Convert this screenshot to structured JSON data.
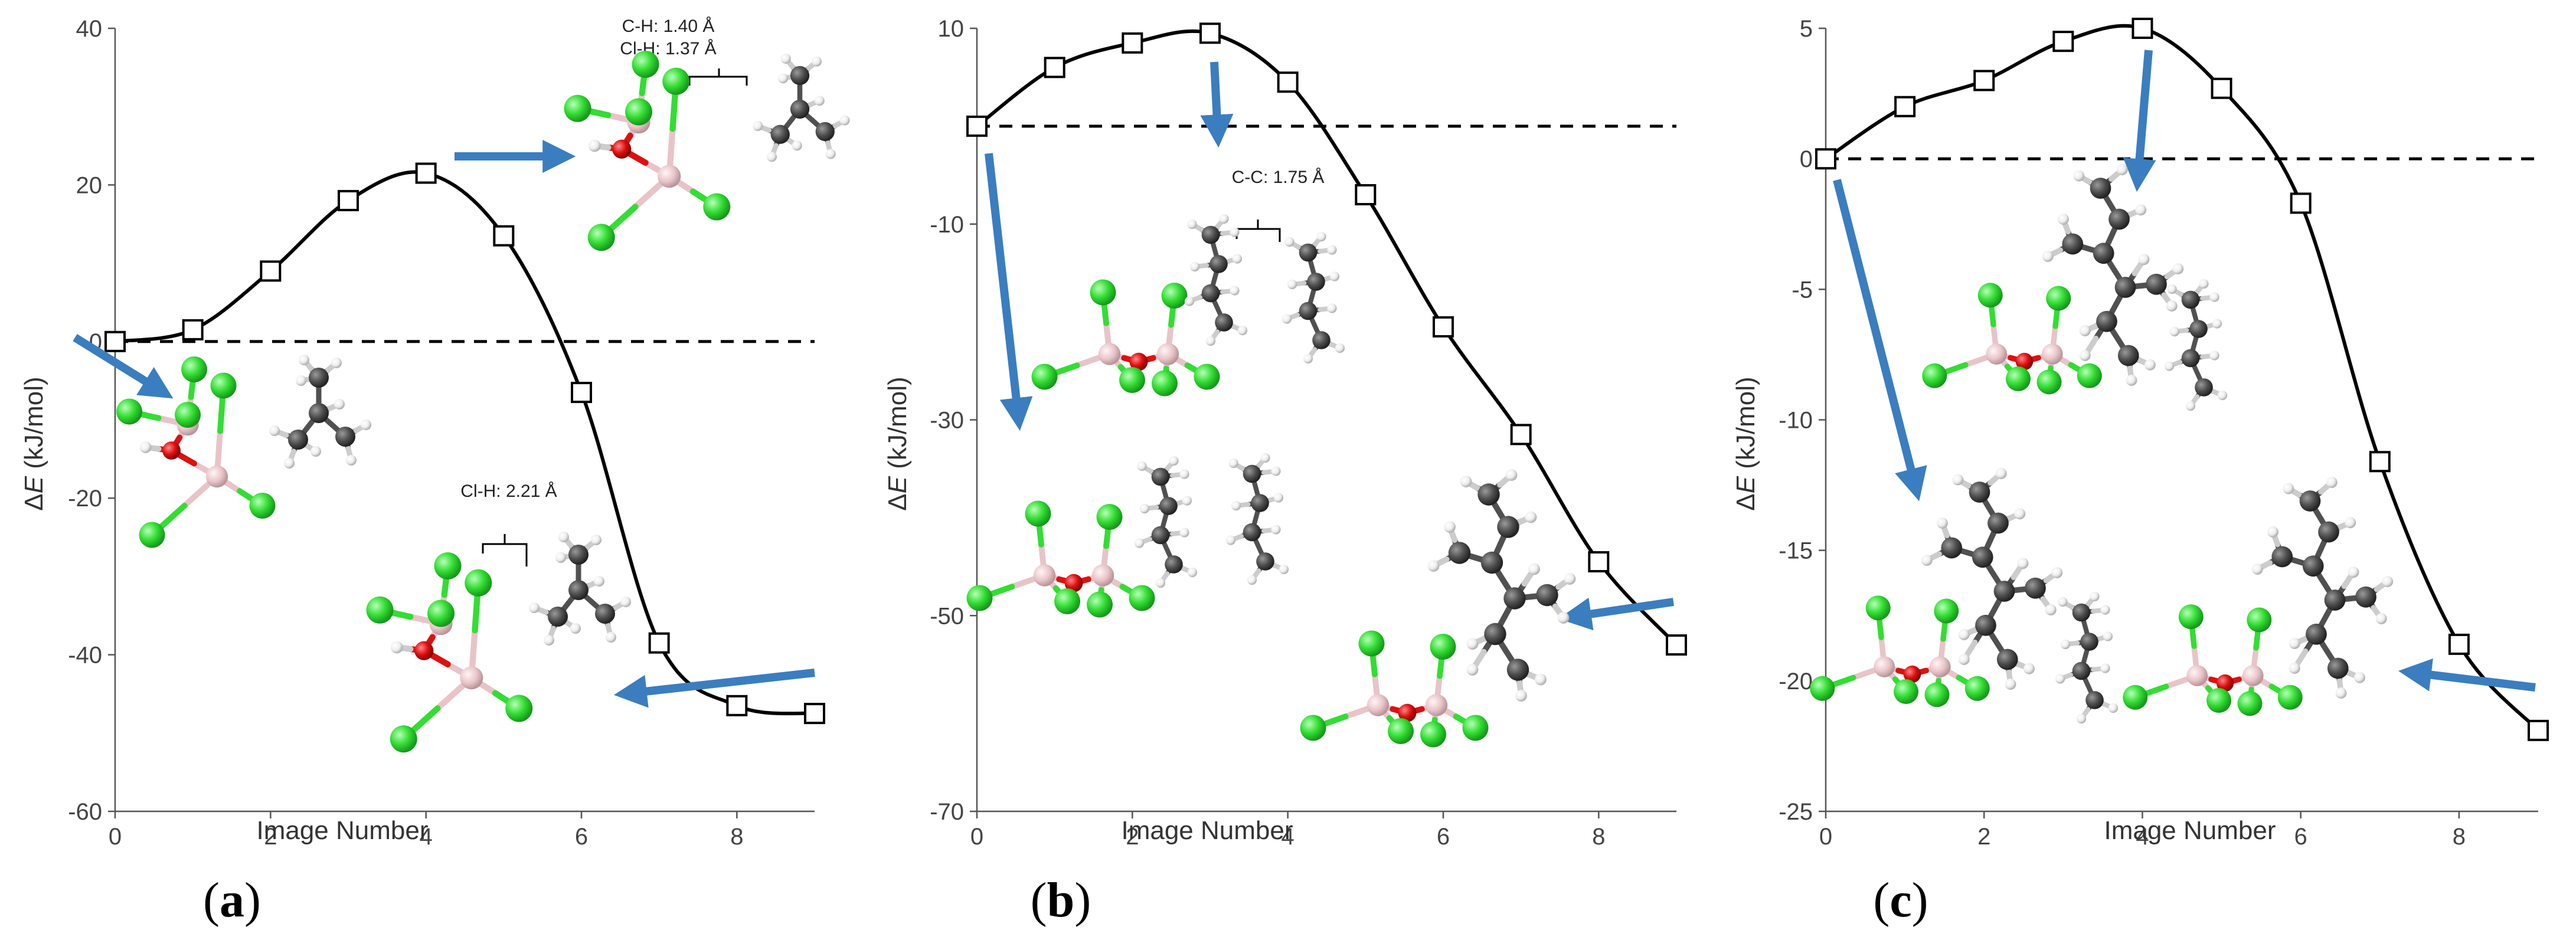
{
  "figure": {
    "panels": [
      {
        "label": "(a)",
        "label_letter": "a",
        "xlabel": "Image Number",
        "ylabel_prefix": "Δ",
        "ylabel_var": "E",
        "ylabel_suffix": " (kJ/mol)",
        "annotations": [
          {
            "text": "C-H: 1.40 Å"
          },
          {
            "text": "Cl-H: 1.37 Å"
          },
          {
            "text": "Cl-H: 2.21 Å"
          }
        ]
      },
      {
        "label": "(b)",
        "label_letter": "b",
        "xlabel": "Image Number",
        "ylabel_prefix": "Δ",
        "ylabel_var": "E",
        "ylabel_suffix": " (kJ/mol)",
        "annotations": [
          {
            "text": "C-C: 1.75 Å"
          }
        ]
      },
      {
        "label": "(c)",
        "label_letter": "c",
        "xlabel": "Image Number",
        "ylabel_prefix": "Δ",
        "ylabel_var": "E",
        "ylabel_suffix": " (kJ/mol)",
        "annotations": []
      }
    ],
    "colors": {
      "curve": "#000000",
      "arrow": "#3a7ec0",
      "chlorine": "#33dd33",
      "boron": "#e8c4c8",
      "oxygen": "#dd1111",
      "carbon": "#505050",
      "hydrogen": "#f2f2f2"
    }
  },
  "chart_data": [
    {
      "type": "line",
      "title": "",
      "xlabel": "Image Number",
      "ylabel": "ΔE (kJ/mol)",
      "x": [
        0,
        1,
        2,
        3,
        4,
        5,
        6,
        7,
        8,
        9
      ],
      "series": [
        {
          "values": [
            0,
            1.5,
            9,
            18,
            21.5,
            13.5,
            -6.5,
            -38.5,
            -46.5,
            -47.5
          ]
        }
      ],
      "xlim": [
        0,
        9
      ],
      "xticks": [
        0,
        2,
        4,
        6,
        8
      ],
      "ylim": [
        -60,
        40
      ],
      "yticks": [
        -60,
        -40,
        -20,
        0,
        20,
        40
      ],
      "reference_line": 0,
      "marker": "open-square",
      "grid": false
    },
    {
      "type": "line",
      "title": "",
      "xlabel": "Image Number",
      "ylabel": "ΔE (kJ/mol)",
      "x": [
        0,
        1,
        2,
        3,
        4,
        5,
        6,
        7,
        8,
        9
      ],
      "series": [
        {
          "values": [
            0,
            6,
            8.5,
            9.5,
            4.5,
            -7,
            -20.5,
            -31.5,
            -44.5,
            -53
          ]
        }
      ],
      "xlim": [
        0,
        9
      ],
      "xticks": [
        0,
        2,
        4,
        6,
        8
      ],
      "ylim": [
        -70,
        10
      ],
      "yticks": [
        -70,
        -50,
        -30,
        -10,
        10
      ],
      "reference_line": 0,
      "marker": "open-square",
      "grid": false
    },
    {
      "type": "line",
      "title": "",
      "xlabel": "Image Number",
      "ylabel": "ΔE (kJ/mol)",
      "x": [
        0,
        1,
        2,
        3,
        4,
        5,
        6,
        7,
        8,
        9
      ],
      "series": [
        {
          "values": [
            0,
            2,
            3,
            4.5,
            5,
            2.7,
            -1.7,
            -11.6,
            -18.6,
            -21.9
          ]
        }
      ],
      "xlim": [
        0,
        9
      ],
      "xticks": [
        0,
        2,
        4,
        6,
        8
      ],
      "ylim": [
        -25,
        5
      ],
      "yticks": [
        -25,
        -20,
        -15,
        -10,
        -5,
        0,
        5
      ],
      "reference_line": 0,
      "marker": "open-square",
      "grid": false
    }
  ]
}
